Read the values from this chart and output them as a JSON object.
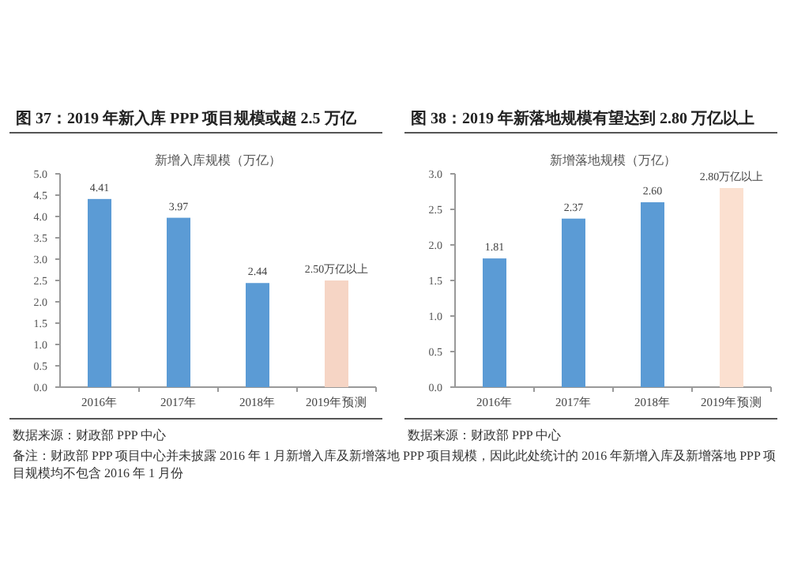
{
  "chart_data": [
    {
      "type": "bar",
      "title": "图 37：2019 年新入库 PPP 项目规模或超 2.5 万亿",
      "subtitle": "新增入库规模（万亿）",
      "categories": [
        "2016年",
        "2017年",
        "2018年",
        "2019年预测"
      ],
      "values": [
        4.41,
        3.97,
        2.44,
        2.5
      ],
      "colors": [
        "#5b9bd5",
        "#5b9bd5",
        "#5b9bd5",
        "#f6d5c5"
      ],
      "value_labels": [
        "4.41",
        "3.97",
        "2.44",
        "2.50万亿以上"
      ],
      "ylim": [
        0,
        5
      ],
      "yticks": [
        {
          "value": 0,
          "label": "0.0"
        },
        {
          "value": 0.5,
          "label": "0.5"
        },
        {
          "value": 1,
          "label": "1.0"
        },
        {
          "value": 1.5,
          "label": "1.5"
        },
        {
          "value": 2,
          "label": "2.0"
        },
        {
          "value": 2.5,
          "label": "2.5"
        },
        {
          "value": 3,
          "label": "3.0"
        },
        {
          "value": 3.5,
          "label": "3.5"
        },
        {
          "value": 4,
          "label": "4.0"
        },
        {
          "value": 4.5,
          "label": "4.5"
        },
        {
          "value": 5,
          "label": "5.0"
        }
      ],
      "annotations": [
        "数据来源：财政部 PPP 中心",
        "备注：财政部 PPP 项目中心并未披露 2016 年 1 月新增入库及新增落地 PPP 项目规模，因此此处统计的 2016 年新增入库及新增落地 PPP 项目规模均不包含 2016 年 1 月份"
      ]
    },
    {
      "type": "bar",
      "title": "图 38：2019 年新落地规模有望达到 2.80 万亿以上",
      "subtitle": "新增落地规模（万亿）",
      "categories": [
        "2016年",
        "2017年",
        "2018年",
        "2019年预测"
      ],
      "values": [
        1.81,
        2.37,
        2.6,
        2.8
      ],
      "colors": [
        "#5b9bd5",
        "#5b9bd5",
        "#5b9bd5",
        "#fbe0d0"
      ],
      "value_labels": [
        "1.81",
        "2.37",
        "2.60",
        "2.80万亿以上"
      ],
      "ylim": [
        0,
        3
      ],
      "yticks": [
        {
          "value": 0,
          "label": "0.0"
        },
        {
          "value": 0.5,
          "label": "0.5"
        },
        {
          "value": 1,
          "label": "1.0"
        },
        {
          "value": 1.5,
          "label": "1.5"
        },
        {
          "value": 2,
          "label": "2.0"
        },
        {
          "value": 2.5,
          "label": "2.5"
        },
        {
          "value": 3,
          "label": "3.0"
        }
      ],
      "annotations": [
        "数据来源：财政部 PPP 中心"
      ]
    }
  ]
}
